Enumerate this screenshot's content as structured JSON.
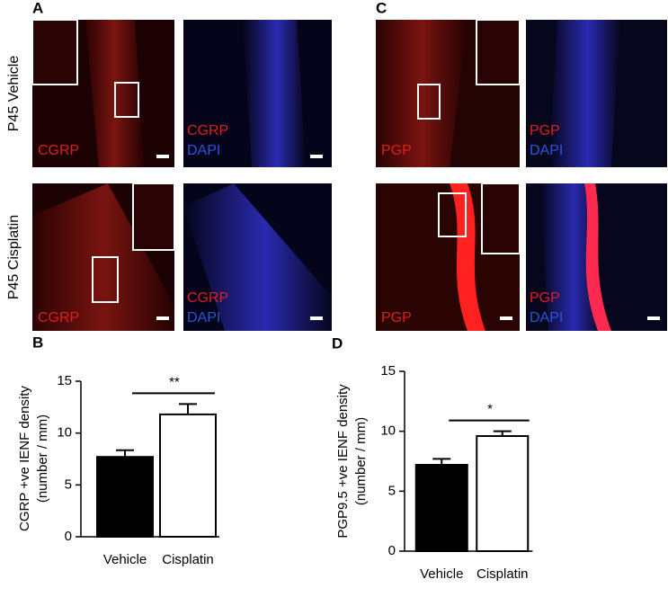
{
  "figure": {
    "panel_labels": [
      "A",
      "C"
    ],
    "row_labels": [
      "P45 Vehicle",
      "P45 Cisplatin"
    ],
    "image_labels": {
      "cgrp": "CGRP",
      "pgp": "PGP",
      "dapi": "DAPI"
    }
  },
  "chart_data": [
    {
      "type": "bar",
      "panel_label": "B",
      "ylabel": [
        "CGRP +ve IENF density",
        "(number / mm)"
      ],
      "categories": [
        "Vehicle",
        "Cisplatin"
      ],
      "values": [
        7.7,
        11.8
      ],
      "errors": [
        0.65,
        1.0
      ],
      "colors": [
        "#000000",
        "#ffffff"
      ],
      "ylim": [
        0,
        15
      ],
      "yticks": [
        0,
        5,
        10,
        15
      ],
      "significance": "**"
    },
    {
      "type": "bar",
      "panel_label": "D",
      "ylabel": [
        "PGP9.5 +ve IENF density",
        "(number / mm)"
      ],
      "categories": [
        "Vehicle",
        "Cisplatin"
      ],
      "values": [
        7.2,
        9.6
      ],
      "errors": [
        0.5,
        0.4
      ],
      "colors": [
        "#000000",
        "#ffffff"
      ],
      "ylim": [
        0,
        15
      ],
      "yticks": [
        0,
        5,
        10,
        15
      ],
      "significance": "*"
    }
  ]
}
